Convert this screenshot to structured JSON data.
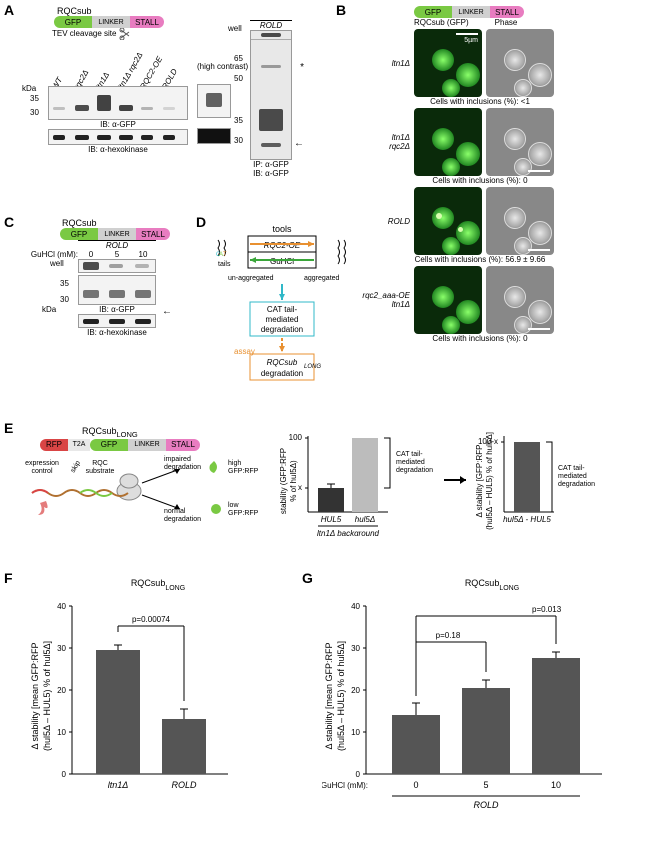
{
  "panelA": {
    "label": "A",
    "construct_title": "RQCsub",
    "segs": [
      "GFP",
      "LINKER",
      "STALL"
    ],
    "tev_label": "TEV cleavage site",
    "lane_labels": [
      "WT",
      "rqc2Δ",
      "ltn1Δ",
      "ltn1Δ rqc2Δ",
      "RQC2-OE",
      "ROLD"
    ],
    "mw_labels": [
      "kDa",
      "35",
      "30"
    ],
    "ib_labels": [
      "IB: α-GFP",
      "IB: α-hexokinase"
    ],
    "side_panel_label": "(high contrast)",
    "side_lane": "ROLD",
    "ip_panel": {
      "lane": "ROLD",
      "mw": [
        "well",
        "65",
        "50",
        "35",
        "30"
      ],
      "caption": [
        "IP: α-GFP",
        "IB: α-GFP"
      ]
    },
    "arrow_color": "#000000",
    "blot_bg": "#f0f0f0"
  },
  "panelB": {
    "label": "B",
    "construct_title": "RQCsub (GFP)",
    "segs": [
      "GFP",
      "LINKER",
      "STALL"
    ],
    "col_headers": [
      "RQCsub (GFP)",
      "Phase"
    ],
    "rows": [
      {
        "name": "ltn1Δ",
        "inclusions": "Cells with inclusions (%): <1"
      },
      {
        "name": "ltn1Δ\nrqc2Δ",
        "inclusions": "Cells with inclusions (%): 0"
      },
      {
        "name": "ROLD",
        "inclusions": "Cells with inclusions (%): 56.9 ± 9.66"
      },
      {
        "name": "rqc2_aaa-OE\nltn1Δ",
        "inclusions": "Cells with inclusions (%): 0"
      }
    ],
    "scale": "5µm",
    "gfp_color": "#55e055",
    "phase_bg": "#989898"
  },
  "panelC": {
    "label": "C",
    "construct_title": "RQCsub",
    "segs": [
      "GFP",
      "LINKER",
      "STALL"
    ],
    "condition": "ROLD",
    "guhcl_label": "GuHCl (mM):",
    "guhcl_values": [
      "0",
      "5",
      "10"
    ],
    "mw_labels": [
      "well",
      "35",
      "30",
      "kDa"
    ],
    "ib_labels": [
      "IB: α-GFP",
      "IB: α-hexokinase"
    ]
  },
  "panelD": {
    "label": "D",
    "tools_label": "tools",
    "rqc2": "RQC2-OE",
    "guhcl": "GuHCl",
    "cat_label": "CAT\ntails",
    "unagg": "un-aggregated",
    "agg": "aggregated",
    "box1": "CAT tail-\nmediated\ndegradation",
    "assay_label": "assay",
    "box2": "RQCsub_LONG\ndegradation",
    "arrow_green": "#3aa63a",
    "arrow_orange": "#e89030",
    "arrow_cyan": "#30b8c8",
    "box1_border": "#30b8c8",
    "box2_border": "#e89030"
  },
  "panelE": {
    "label": "E",
    "construct_title": "RQCsub_LONG",
    "segs": [
      "RFP",
      "T2A",
      "GFP",
      "LINKER",
      "STALL"
    ],
    "subtext": {
      "expr": "expression\ncontrol",
      "rqc": "RQC\nsubstrate",
      "skip": "skip",
      "impaired": "impaired\ndegradation",
      "normal": "normal\ndegradation",
      "high": "high\nGFP:RFP",
      "low": "low\nGFP:RFP"
    },
    "chartL": {
      "ylabel": "stability (GFP:RFP\n% of hul5Δ)",
      "y_top": "100",
      "y_mid": "x",
      "bars": [
        {
          "label": "HUL5",
          "val": 32,
          "color": "#333333",
          "err": 5
        },
        {
          "label": "hul5Δ",
          "val": 100,
          "color": "#bcbcbc",
          "err": 0
        }
      ],
      "bracket": "CAT tail-\nmediated\ndegradation",
      "bg_label": "ltn1Δ background"
    },
    "chartR": {
      "ylabel": "Δ stability [GFP:RFP\n(hul5Δ – HUL5) % of hul5Δ]",
      "y_top": "100-x",
      "bar_label": "hul5Δ - HUL5",
      "bracket": "CAT tail-\nmediated\ndegradation",
      "bar_color": "#555555",
      "bar_val": 68
    }
  },
  "panelF": {
    "label": "F",
    "title": "RQCsub_LONG",
    "ylabel": "Δ stability [mean GFP:RFP\n(hul5Δ – HUL5) % of hul5Δ]",
    "ymax": 40,
    "ytick": 10,
    "p": "p=0.00074",
    "bars": [
      {
        "label": "ltn1Δ",
        "val": 29.5,
        "err": 1.2
      },
      {
        "label": "ROLD",
        "val": 13,
        "err": 2.5
      }
    ],
    "bar_color": "#555555"
  },
  "panelG": {
    "label": "G",
    "title": "RQCsub_LONG",
    "ylabel": "Δ stability [mean GFP:RFP\n(hul5Δ – HUL5) % of hul5Δ]",
    "ymax": 40,
    "ytick": 10,
    "p1": "p=0.18",
    "p2": "p=0.013",
    "guhcl_label": "GuHCl (mM):",
    "cond": "ROLD",
    "bars": [
      {
        "label": "0",
        "val": 14,
        "err": 3
      },
      {
        "label": "5",
        "val": 20.5,
        "err": 2
      },
      {
        "label": "10",
        "val": 27.5,
        "err": 1.5
      }
    ],
    "bar_color": "#555555"
  }
}
